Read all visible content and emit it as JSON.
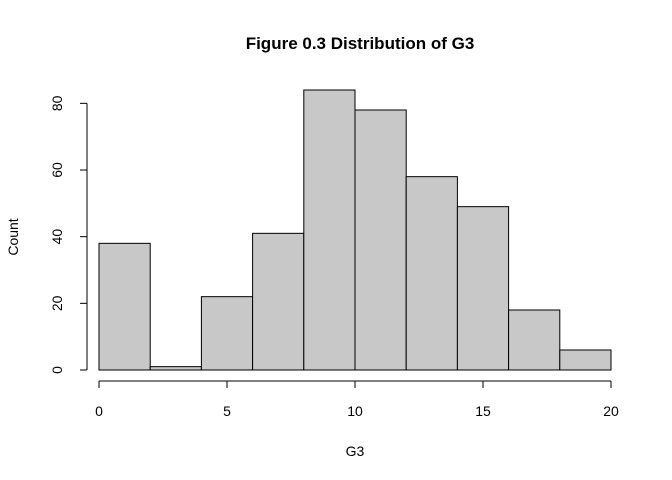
{
  "chart_data": {
    "type": "bar",
    "subtype": "histogram",
    "title": "Figure 0.3 Distribution of G3",
    "xlabel": "G3",
    "ylabel": "Count",
    "bins": [
      {
        "from": 0,
        "to": 2,
        "count": 38
      },
      {
        "from": 2,
        "to": 4,
        "count": 1
      },
      {
        "from": 4,
        "to": 6,
        "count": 22
      },
      {
        "from": 6,
        "to": 8,
        "count": 41
      },
      {
        "from": 8,
        "to": 10,
        "count": 84
      },
      {
        "from": 10,
        "to": 12,
        "count": 78
      },
      {
        "from": 12,
        "to": 14,
        "count": 58
      },
      {
        "from": 14,
        "to": 16,
        "count": 49
      },
      {
        "from": 16,
        "to": 18,
        "count": 18
      },
      {
        "from": 18,
        "to": 20,
        "count": 6
      }
    ],
    "xlim": [
      0,
      20
    ],
    "ylim": [
      0,
      84
    ],
    "x_ticks": [
      0,
      5,
      10,
      15,
      20
    ],
    "x_tick_labels": [
      "0",
      "5",
      "10",
      "15",
      "20"
    ],
    "y_ticks": [
      0,
      20,
      40,
      60,
      80
    ],
    "y_tick_labels": [
      "0",
      "20",
      "40",
      "60",
      "80"
    ],
    "grid": false,
    "legend": "none",
    "bar_fill": "#c8c8c8",
    "bar_stroke": "#000000"
  }
}
